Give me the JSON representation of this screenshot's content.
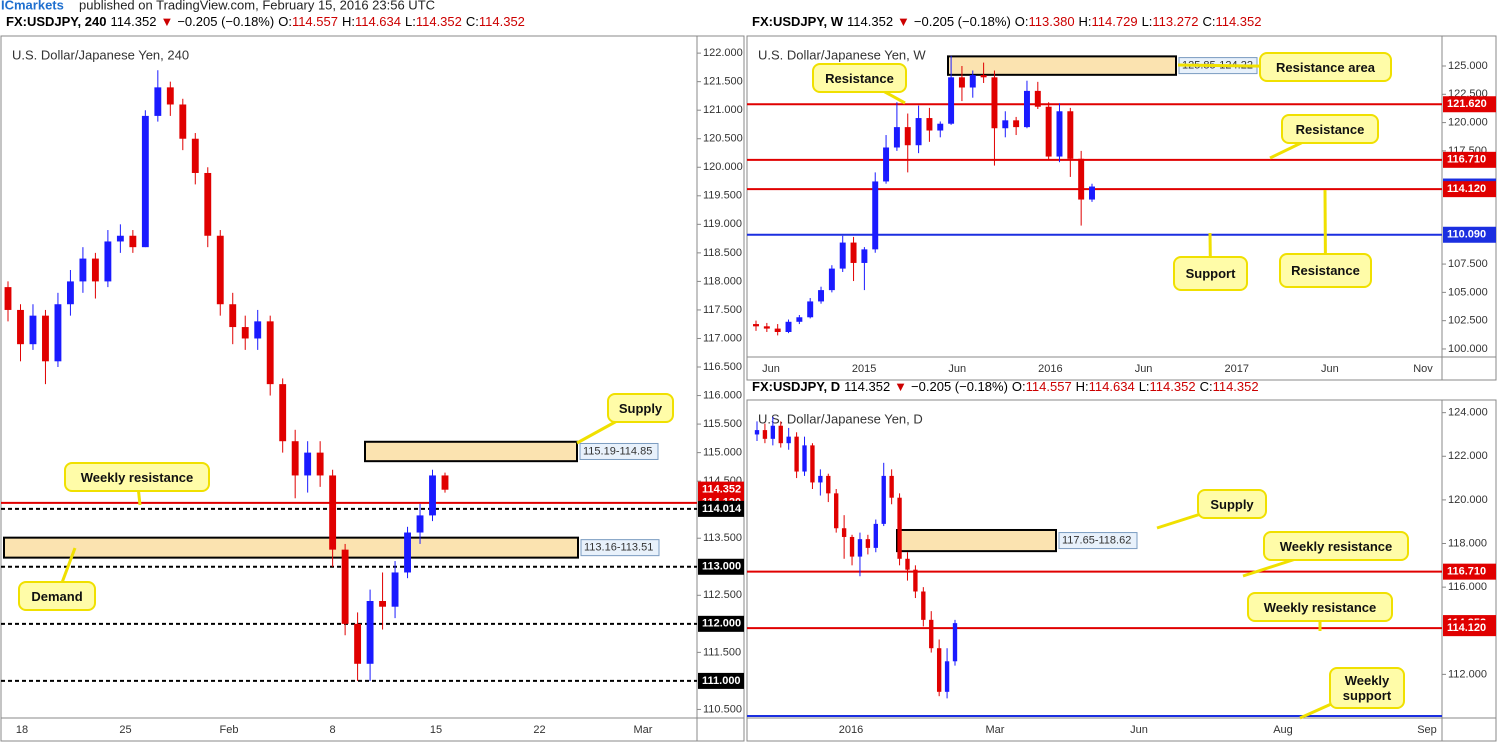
{
  "header": {
    "brand": "ICmarkets",
    "published": "published on TradingView.com, February 15, 2016 23:56 UTC"
  },
  "panels": [
    {
      "symbol": "FX:USDJPY, 240",
      "last": "114.352",
      "arrow": "▼",
      "change": "−0.205 (−0.18%)",
      "ohlc": [
        [
          "O:",
          "114.557"
        ],
        [
          "H:",
          "114.634"
        ],
        [
          "L:",
          "114.352"
        ],
        [
          "C:",
          "114.352"
        ]
      ],
      "title": "U.S. Dollar/Japanese Yen, 240",
      "ylim": [
        110.35,
        122.3
      ],
      "yticks": [
        {
          "value": 122,
          "label": "122.000"
        },
        {
          "value": 121.5,
          "label": "121.500"
        },
        {
          "value": 121,
          "label": "121.000"
        },
        {
          "value": 120.5,
          "label": "120.500"
        },
        {
          "value": 120,
          "label": "120.000"
        },
        {
          "value": 119.5,
          "label": "119.500"
        },
        {
          "value": 119,
          "label": "119.000"
        },
        {
          "value": 118.5,
          "label": "118.500"
        },
        {
          "value": 118,
          "label": "118.000"
        },
        {
          "value": 117.5,
          "label": "117.500"
        },
        {
          "value": 117,
          "label": "117.000"
        },
        {
          "value": 116.5,
          "label": "116.500"
        },
        {
          "value": 116,
          "label": "116.000"
        },
        {
          "value": 115.5,
          "label": "115.500"
        },
        {
          "value": 115,
          "label": "115.000"
        },
        {
          "value": 114.5,
          "label": "114.500"
        },
        {
          "value": 113.5,
          "label": "113.500"
        },
        {
          "value": 112.5,
          "label": "112.500"
        },
        {
          "value": 111.5,
          "label": "111.500"
        },
        {
          "value": 110.5,
          "label": "110.500"
        }
      ],
      "xlabels": [
        "18",
        "25",
        "Feb",
        "8",
        "15",
        "22",
        "Mar"
      ],
      "up_color": "#1a1aff",
      "down_color": "#e00000",
      "candles": [
        [
          117.9,
          118.0,
          117.3,
          117.5
        ],
        [
          117.5,
          117.6,
          116.6,
          116.9
        ],
        [
          116.9,
          117.6,
          116.8,
          117.4
        ],
        [
          117.4,
          117.5,
          116.2,
          116.6
        ],
        [
          116.6,
          117.8,
          116.5,
          117.6
        ],
        [
          117.6,
          118.2,
          117.4,
          118.0
        ],
        [
          118.0,
          118.6,
          117.8,
          118.4
        ],
        [
          118.4,
          118.5,
          117.7,
          118.0
        ],
        [
          118.0,
          118.9,
          117.9,
          118.7
        ],
        [
          118.7,
          119.0,
          118.5,
          118.8
        ],
        [
          118.8,
          118.9,
          118.5,
          118.6
        ],
        [
          118.6,
          121.0,
          118.6,
          120.9
        ],
        [
          120.9,
          121.7,
          120.8,
          121.4
        ],
        [
          121.4,
          121.5,
          120.9,
          121.1
        ],
        [
          121.1,
          121.2,
          120.3,
          120.5
        ],
        [
          120.5,
          120.6,
          119.7,
          119.9
        ],
        [
          119.9,
          120.0,
          118.6,
          118.8
        ],
        [
          118.8,
          118.9,
          117.4,
          117.6
        ],
        [
          117.6,
          117.8,
          116.9,
          117.2
        ],
        [
          117.2,
          117.4,
          116.8,
          117.0
        ],
        [
          117.0,
          117.5,
          116.8,
          117.3
        ],
        [
          117.3,
          117.4,
          116.0,
          116.2
        ],
        [
          116.2,
          116.3,
          115.0,
          115.2
        ],
        [
          115.2,
          115.4,
          114.2,
          114.6
        ],
        [
          114.6,
          115.2,
          114.3,
          115.0
        ],
        [
          115.0,
          115.2,
          114.4,
          114.6
        ],
        [
          114.6,
          114.7,
          113.0,
          113.3
        ],
        [
          113.3,
          113.4,
          111.8,
          112.0
        ],
        [
          112.0,
          112.2,
          111.0,
          111.3
        ],
        [
          111.3,
          112.6,
          111.0,
          112.4
        ],
        [
          112.4,
          112.9,
          111.9,
          112.3
        ],
        [
          112.3,
          113.1,
          112.1,
          112.9
        ],
        [
          112.9,
          113.7,
          112.8,
          113.6
        ],
        [
          113.6,
          114.1,
          113.4,
          113.9
        ],
        [
          113.9,
          114.7,
          113.8,
          114.6
        ],
        [
          114.6,
          114.65,
          114.3,
          114.35
        ]
      ],
      "levels": [
        {
          "value": 114.352,
          "label": "114.352",
          "color": "#e00000",
          "line": "none"
        },
        {
          "value": 114.12,
          "label": "114.120",
          "color": "#e00000",
          "line": "solid"
        },
        {
          "value": 114.014,
          "label": "114.014",
          "color": "#000000",
          "line": "dashed"
        },
        {
          "value": 113,
          "label": "113.000",
          "color": "#000000",
          "line": "dashed"
        },
        {
          "value": 112,
          "label": "112.000",
          "color": "#000000",
          "line": "dashed"
        },
        {
          "value": 111,
          "label": "111.000",
          "color": "#000000",
          "line": "dashed"
        }
      ],
      "zones": [
        {
          "top": 115.19,
          "bottom": 114.85,
          "label": "115.19-114.85"
        },
        {
          "top": 113.51,
          "bottom": 113.16,
          "label": "113.16-113.51"
        }
      ],
      "callouts": [
        "Supply",
        "Weekly resistance",
        "Demand"
      ]
    },
    {
      "symbol": "FX:USDJPY, W",
      "last": "114.352",
      "arrow": "▼",
      "change": "−0.205 (−0.18%)",
      "ohlc": [
        [
          "O:",
          "113.380"
        ],
        [
          "H:",
          "114.729"
        ],
        [
          "L:",
          "113.272"
        ],
        [
          "C:",
          "114.352"
        ]
      ],
      "title": "U.S. Dollar/Japanese Yen, W",
      "ylim": [
        99.29,
        127.65
      ],
      "yticks": [
        {
          "value": 125,
          "label": "125.000"
        },
        {
          "value": 122.5,
          "label": "122.500"
        },
        {
          "value": 120,
          "label": "120.000"
        },
        {
          "value": 117.5,
          "label": "117.500"
        },
        {
          "value": 107.5,
          "label": "107.500"
        },
        {
          "value": 105,
          "label": "105.000"
        },
        {
          "value": 102.5,
          "label": "102.500"
        },
        {
          "value": 100,
          "label": "100.000"
        }
      ],
      "xlabels": [
        "Jun",
        "2015",
        "Jun",
        "2016",
        "Jun",
        "2017",
        "Jun",
        "Nov"
      ],
      "up_color": "#1a1aff",
      "down_color": "#e00000",
      "candles": [
        [
          102.2,
          102.5,
          101.6,
          102.0
        ],
        [
          102.0,
          102.3,
          101.5,
          101.8
        ],
        [
          101.8,
          102.2,
          101.2,
          101.5
        ],
        [
          101.5,
          102.6,
          101.4,
          102.4
        ],
        [
          102.4,
          103.0,
          102.2,
          102.8
        ],
        [
          102.8,
          104.5,
          102.7,
          104.2
        ],
        [
          104.2,
          105.5,
          104.0,
          105.2
        ],
        [
          105.2,
          107.4,
          105.0,
          107.1
        ],
        [
          107.1,
          110.0,
          106.8,
          109.4
        ],
        [
          109.4,
          109.9,
          106.0,
          107.6
        ],
        [
          107.6,
          109.0,
          105.2,
          108.8
        ],
        [
          108.8,
          115.6,
          108.5,
          114.8
        ],
        [
          114.8,
          118.9,
          114.6,
          117.8
        ],
        [
          117.8,
          121.8,
          117.5,
          119.6
        ],
        [
          119.6,
          120.8,
          115.6,
          118.0
        ],
        [
          118.0,
          121.5,
          117.3,
          120.4
        ],
        [
          120.4,
          121.3,
          118.3,
          119.3
        ],
        [
          119.3,
          120.1,
          118.7,
          119.9
        ],
        [
          119.9,
          125.9,
          119.8,
          124.0
        ],
        [
          124.0,
          125.0,
          121.9,
          123.1
        ],
        [
          123.1,
          124.6,
          122.2,
          124.2
        ],
        [
          124.2,
          125.3,
          123.5,
          124.0
        ],
        [
          124.0,
          124.6,
          116.2,
          119.5
        ],
        [
          119.5,
          121.0,
          118.7,
          120.2
        ],
        [
          120.2,
          120.5,
          118.9,
          119.6
        ],
        [
          119.6,
          123.7,
          119.5,
          122.8
        ],
        [
          122.8,
          123.6,
          121.2,
          121.4
        ],
        [
          121.4,
          121.8,
          116.7,
          117.0
        ],
        [
          117.0,
          121.7,
          116.5,
          121.0
        ],
        [
          121.0,
          121.3,
          115.2,
          116.8
        ],
        [
          116.8,
          117.5,
          110.9,
          113.2
        ],
        [
          113.2,
          114.6,
          113.0,
          114.35
        ]
      ],
      "levels": [
        {
          "value": 121.62,
          "label": "121.620",
          "color": "#e00000",
          "line": "solid"
        },
        {
          "value": 116.71,
          "label": "116.710",
          "color": "#e00000",
          "line": "solid"
        },
        {
          "value": 114.352,
          "label": "114.352",
          "color": "#1b2fe0",
          "line": "none"
        },
        {
          "value": 114.12,
          "label": "114.120",
          "color": "#e00000",
          "line": "solid"
        },
        {
          "value": 110.09,
          "label": "110.090",
          "color": "#1b2fe0",
          "line": "solid"
        }
      ],
      "zones": [
        {
          "top": 125.85,
          "bottom": 124.22,
          "label": "125.85-124.22"
        }
      ],
      "callouts": [
        "Resistance",
        "Resistance area",
        "Resistance",
        "Support",
        "Resistance"
      ]
    },
    {
      "symbol": "FX:USDJPY, D",
      "last": "114.352",
      "arrow": "▼",
      "change": "−0.205 (−0.18%)",
      "ohlc": [
        [
          "O:",
          "114.557"
        ],
        [
          "H:",
          "114.634"
        ],
        [
          "L:",
          "114.352"
        ],
        [
          "C:",
          "114.352"
        ]
      ],
      "title": "U.S. Dollar/Japanese Yen, D",
      "ylim": [
        110.0,
        124.58
      ],
      "yticks": [
        {
          "value": 124,
          "label": "124.000"
        },
        {
          "value": 122,
          "label": "122.000"
        },
        {
          "value": 120,
          "label": "120.000"
        },
        {
          "value": 118,
          "label": "118.000"
        },
        {
          "value": 116,
          "label": "116.000"
        },
        {
          "value": 112,
          "label": "112.000"
        }
      ],
      "xlabels": [
        "2016",
        "Mar",
        "Jun",
        "Aug",
        "Sep"
      ],
      "up_color": "#1a1aff",
      "down_color": "#e00000",
      "candles": [
        [
          123.0,
          123.6,
          122.7,
          123.2
        ],
        [
          123.2,
          123.5,
          122.6,
          122.8
        ],
        [
          122.8,
          123.8,
          122.5,
          123.4
        ],
        [
          123.4,
          123.6,
          122.4,
          122.6
        ],
        [
          122.6,
          123.3,
          122.3,
          122.9
        ],
        [
          122.9,
          123.1,
          121.0,
          121.3
        ],
        [
          121.3,
          122.9,
          121.1,
          122.5
        ],
        [
          122.5,
          122.6,
          120.5,
          120.8
        ],
        [
          120.8,
          121.4,
          120.2,
          121.1
        ],
        [
          121.1,
          121.2,
          119.9,
          120.3
        ],
        [
          120.3,
          120.5,
          118.5,
          118.7
        ],
        [
          118.7,
          119.3,
          117.3,
          118.3
        ],
        [
          118.3,
          118.4,
          117.0,
          117.4
        ],
        [
          117.4,
          118.5,
          116.5,
          118.2
        ],
        [
          118.2,
          118.4,
          117.5,
          117.8
        ],
        [
          117.8,
          119.1,
          117.6,
          118.9
        ],
        [
          118.9,
          121.7,
          118.8,
          121.1
        ],
        [
          121.1,
          121.4,
          119.8,
          120.1
        ],
        [
          120.1,
          120.3,
          117.0,
          117.3
        ],
        [
          117.3,
          117.6,
          116.3,
          116.8
        ],
        [
          116.8,
          117.0,
          115.5,
          115.8
        ],
        [
          115.8,
          116.0,
          114.2,
          114.5
        ],
        [
          114.5,
          114.9,
          113.0,
          113.2
        ],
        [
          113.2,
          113.6,
          111.0,
          111.2
        ],
        [
          111.2,
          113.2,
          110.9,
          112.6
        ],
        [
          112.6,
          114.5,
          112.4,
          114.35
        ]
      ],
      "levels": [
        {
          "value": 116.71,
          "label": "116.710",
          "color": "#e00000",
          "line": "solid"
        },
        {
          "value": 114.352,
          "label": "114.352",
          "color": "#e00000",
          "line": "none"
        },
        {
          "value": 114.12,
          "label": "114.120",
          "color": "#e00000",
          "line": "solid"
        },
        {
          "value": 110.09,
          "color": "#1b2fe0",
          "line": "solid"
        }
      ],
      "zones": [
        {
          "top": 118.62,
          "bottom": 117.65,
          "label": "117.65-118.62"
        }
      ],
      "callouts": [
        "Supply",
        "Weekly resistance",
        "Weekly resistance",
        "Weekly support"
      ]
    }
  ]
}
